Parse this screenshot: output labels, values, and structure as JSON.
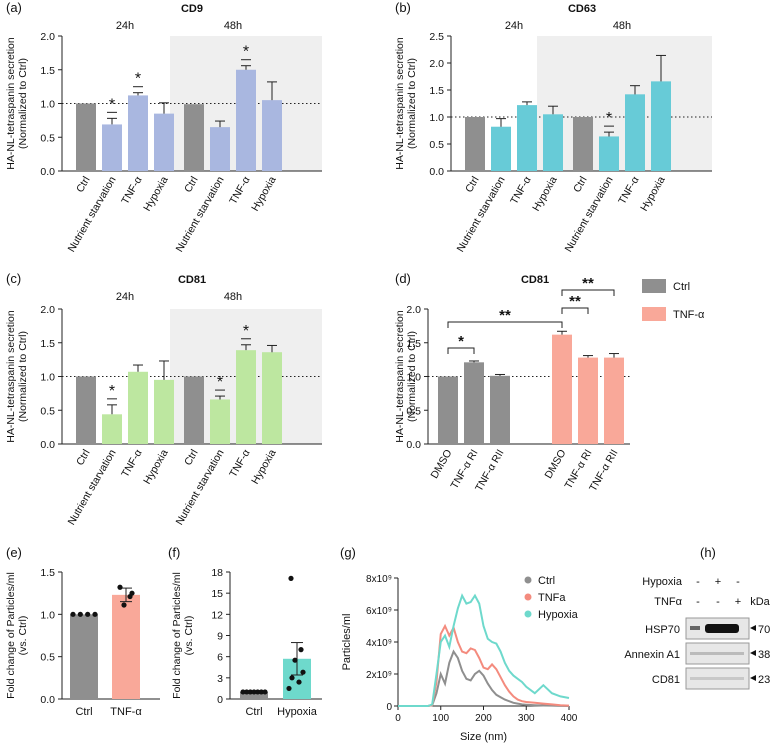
{
  "colors": {
    "ctrl": "#8f8f8f",
    "cd9": "#a9b7e0",
    "cd63": "#67cbd7",
    "cd81": "#bde7a0",
    "tnf": "#f9a899",
    "hypoxia_line": "#6ed9cc",
    "tnf_line": "#f48b7e",
    "ctrl_line": "#8f8f8f",
    "shade": "#efefef"
  },
  "chart_data": [
    {
      "id": "a",
      "type": "bar",
      "panel_label": "(a)",
      "title": "CD9",
      "ylabel": "HA-NL-tetraspanin secretion",
      "ylabel2": "(Normalized to Ctrl)",
      "ylim": [
        0,
        2.0
      ],
      "yticks": [
        "0.0",
        "0.5",
        "1.0",
        "1.5",
        "2.0"
      ],
      "reference_line": 1.0,
      "groups": [
        {
          "label": "24h",
          "shaded": false,
          "bars": [
            {
              "category": "Ctrl",
              "value": 1.0,
              "error": 0,
              "color": "ctrl",
              "sig": ""
            },
            {
              "category": "Nutrient starvation",
              "value": 0.69,
              "error": 0.09,
              "color": "cd9",
              "sig": "*"
            },
            {
              "category": "TNF-α",
              "value": 1.12,
              "error": 0.04,
              "color": "cd9",
              "sig": "*"
            },
            {
              "category": "Hypoxia",
              "value": 0.85,
              "error": 0.16,
              "color": "cd9",
              "sig": ""
            }
          ]
        },
        {
          "label": "48h",
          "shaded": true,
          "bars": [
            {
              "category": "Ctrl",
              "value": 0.99,
              "error": 0,
              "color": "ctrl",
              "sig": ""
            },
            {
              "category": "Nutrient starvation",
              "value": 0.65,
              "error": 0.09,
              "color": "cd9",
              "sig": ""
            },
            {
              "category": "TNF-α",
              "value": 1.5,
              "error": 0.06,
              "color": "cd9",
              "sig": "*"
            },
            {
              "category": "Hypoxia",
              "value": 1.05,
              "error": 0.27,
              "color": "cd9",
              "sig": ""
            }
          ]
        }
      ]
    },
    {
      "id": "b",
      "type": "bar",
      "panel_label": "(b)",
      "title": "CD63",
      "ylabel": "HA-NL-tetraspanin secretion",
      "ylabel2": "(Normalized to Ctrl)",
      "ylim": [
        0,
        2.5
      ],
      "yticks": [
        "0.0",
        "0.5",
        "1.0",
        "1.5",
        "2.0",
        "2.5"
      ],
      "reference_line": 1.0,
      "groups": [
        {
          "label": "24h",
          "shaded": false,
          "bars": [
            {
              "category": "Ctrl",
              "value": 1.0,
              "error": 0,
              "color": "ctrl",
              "sig": ""
            },
            {
              "category": "Nutrient starvation",
              "value": 0.82,
              "error": 0.15,
              "color": "cd63",
              "sig": ""
            },
            {
              "category": "TNF-α",
              "value": 1.22,
              "error": 0.06,
              "color": "cd63",
              "sig": ""
            },
            {
              "category": "Hypoxia",
              "value": 1.05,
              "error": 0.15,
              "color": "cd63",
              "sig": ""
            }
          ]
        },
        {
          "label": "48h",
          "shaded": true,
          "bars": [
            {
              "category": "Ctrl",
              "value": 1.0,
              "error": 0,
              "color": "ctrl",
              "sig": ""
            },
            {
              "category": "Nutrient starvation",
              "value": 0.64,
              "error": 0.08,
              "color": "cd63",
              "sig": "*"
            },
            {
              "category": "TNF-α",
              "value": 1.42,
              "error": 0.16,
              "color": "cd63",
              "sig": ""
            },
            {
              "category": "Hypoxia",
              "value": 1.66,
              "error": 0.48,
              "color": "cd63",
              "sig": ""
            }
          ]
        }
      ]
    },
    {
      "id": "c",
      "type": "bar",
      "panel_label": "(c)",
      "title": "CD81",
      "ylabel": "HA-NL-tetraspanin secretion",
      "ylabel2": "(Normalized to Ctrl)",
      "ylim": [
        0,
        2.0
      ],
      "yticks": [
        "0.0",
        "0.5",
        "1.0",
        "1.5",
        "2.0"
      ],
      "reference_line": 1.0,
      "groups": [
        {
          "label": "24h",
          "shaded": false,
          "bars": [
            {
              "category": "Ctrl",
              "value": 1.0,
              "error": 0,
              "color": "ctrl",
              "sig": ""
            },
            {
              "category": "Nutrient starvation",
              "value": 0.44,
              "error": 0.14,
              "color": "cd81",
              "sig": "*"
            },
            {
              "category": "TNF-α",
              "value": 1.07,
              "error": 0.1,
              "color": "cd81",
              "sig": ""
            },
            {
              "category": "Hypoxia",
              "value": 0.95,
              "error": 0.28,
              "color": "cd81",
              "sig": ""
            }
          ]
        },
        {
          "label": "48h",
          "shaded": true,
          "bars": [
            {
              "category": "Ctrl",
              "value": 1.0,
              "error": 0,
              "color": "ctrl",
              "sig": ""
            },
            {
              "category": "Nutrient starvation",
              "value": 0.66,
              "error": 0.05,
              "color": "cd81",
              "sig": "*"
            },
            {
              "category": "TNF-α",
              "value": 1.39,
              "error": 0.08,
              "color": "cd81",
              "sig": "*"
            },
            {
              "category": "Hypoxia",
              "value": 1.36,
              "error": 0.1,
              "color": "cd81",
              "sig": ""
            }
          ]
        }
      ]
    },
    {
      "id": "d",
      "type": "bar",
      "panel_label": "(d)",
      "title": "CD81",
      "ylabel": "HA-NL-tetraspanin secretion",
      "ylabel2": "(Normalized to Ctrl)",
      "ylim": [
        0,
        2.0
      ],
      "yticks": [
        "0.0",
        "0.5",
        "1.0",
        "1.5",
        "2.0"
      ],
      "reference_line": 1.0,
      "legend": [
        {
          "label": "Ctrl",
          "color": "ctrl"
        },
        {
          "label": "TNF-α",
          "color": "tnf"
        }
      ],
      "groups": [
        {
          "label": "",
          "shaded": false,
          "bars": [
            {
              "category": "DMSO",
              "value": 1.0,
              "error": 0,
              "color": "ctrl",
              "sig": ""
            },
            {
              "category": "TNF-α RI",
              "value": 1.21,
              "error": 0.02,
              "color": "ctrl",
              "sig": ""
            },
            {
              "category": "TNF-α RII",
              "value": 1.01,
              "error": 0.02,
              "color": "ctrl",
              "sig": ""
            }
          ]
        },
        {
          "label": "",
          "shaded": false,
          "bars": [
            {
              "category": "DMSO",
              "value": 1.62,
              "error": 0.05,
              "color": "tnf",
              "sig": ""
            },
            {
              "category": "TNF-α RI",
              "value": 1.28,
              "error": 0.03,
              "color": "tnf",
              "sig": ""
            },
            {
              "category": "TNF-α RII",
              "value": 1.28,
              "error": 0.06,
              "color": "tnf",
              "sig": ""
            }
          ]
        }
      ],
      "brackets": [
        {
          "from": 0,
          "to": 1,
          "label": "*"
        },
        {
          "from": 0,
          "to": 3,
          "label": "**"
        },
        {
          "from": 3,
          "to": 4,
          "label": "**"
        },
        {
          "from": 3,
          "to": 5,
          "label": "**"
        }
      ]
    },
    {
      "id": "e",
      "type": "bar",
      "panel_label": "(e)",
      "ylabel": "Fold change of Particles/ml",
      "ylabel2": "(vs. Ctrl)",
      "ylim": [
        0,
        1.5
      ],
      "yticks": [
        "0.0",
        "0.5",
        "1.0",
        "1.5"
      ],
      "bars": [
        {
          "category": "Ctrl",
          "value": 1.0,
          "error": 0,
          "color": "ctrl",
          "points": [
            1.0,
            1.0,
            1.0,
            1.0
          ]
        },
        {
          "category": "TNF-α",
          "value": 1.23,
          "error": 0.08,
          "color": "tnf",
          "points": [
            1.32,
            1.21,
            1.11,
            1.25
          ]
        }
      ]
    },
    {
      "id": "f",
      "type": "bar",
      "panel_label": "(f)",
      "ylabel": "Fold change of Particles/ml",
      "ylabel2": "(vs. Ctrl)",
      "ylim": [
        0,
        18
      ],
      "yticks": [
        "0",
        "3",
        "6",
        "9",
        "12",
        "15",
        "18"
      ],
      "bars": [
        {
          "category": "Ctrl",
          "value": 1.0,
          "error": 0,
          "color": "ctrl",
          "points": [
            1,
            1,
            1,
            1,
            1,
            1,
            1
          ]
        },
        {
          "category": "Hypoxia",
          "value": 5.7,
          "error": 2.3,
          "color": "hypoxia_line",
          "points": [
            17.1,
            7.0,
            5.5,
            3.8,
            3.0,
            2.4,
            1.5
          ]
        }
      ]
    },
    {
      "id": "g",
      "type": "line",
      "panel_label": "(g)",
      "xlabel": "Size (nm)",
      "ylabel": "Particles/ml",
      "xlim": [
        0,
        400
      ],
      "xticks": [
        "0",
        "100",
        "200",
        "300",
        "400"
      ],
      "ylim": [
        0,
        8
      ],
      "yticks": [
        "0",
        "2x10⁹",
        "4x10⁹",
        "6x10⁹",
        "8x10⁹"
      ],
      "legend": [
        "Ctrl",
        "TNFa",
        "Hypoxia"
      ],
      "series": [
        {
          "name": "Ctrl",
          "color": "ctrl_line",
          "x": [
            0,
            60,
            70,
            80,
            90,
            100,
            110,
            120,
            130,
            140,
            150,
            160,
            170,
            180,
            190,
            200,
            210,
            220,
            230,
            240,
            250,
            260,
            270,
            280,
            290,
            300,
            320,
            340,
            360,
            380,
            400
          ],
          "y": [
            0,
            0,
            0,
            0.05,
            0.8,
            2.0,
            1.4,
            2.7,
            3.4,
            3.0,
            2.2,
            1.7,
            1.6,
            2.0,
            2.2,
            1.9,
            1.4,
            1.0,
            0.7,
            0.55,
            0.4,
            0.3,
            0.2,
            0.15,
            0.1,
            0.08,
            0.05,
            0.03,
            0.02,
            0.01,
            0
          ]
        },
        {
          "name": "TNFa",
          "color": "tnf_line",
          "x": [
            0,
            60,
            70,
            80,
            90,
            100,
            110,
            120,
            130,
            140,
            150,
            160,
            170,
            180,
            190,
            200,
            210,
            220,
            230,
            240,
            250,
            260,
            270,
            280,
            290,
            300,
            320,
            340,
            360,
            380,
            400
          ],
          "y": [
            0,
            0,
            0,
            0.05,
            1.5,
            4.5,
            5.0,
            4.4,
            4.9,
            4.0,
            3.4,
            3.3,
            3.6,
            3.5,
            3.0,
            2.4,
            2.3,
            2.6,
            2.3,
            1.8,
            1.3,
            0.9,
            0.6,
            0.4,
            0.3,
            0.25,
            0.2,
            0.15,
            0.1,
            0.05,
            0.02
          ]
        },
        {
          "name": "Hypoxia",
          "color": "hypoxia_line",
          "x": [
            0,
            60,
            70,
            80,
            90,
            100,
            110,
            120,
            130,
            140,
            150,
            160,
            170,
            180,
            190,
            200,
            210,
            220,
            230,
            240,
            250,
            260,
            270,
            280,
            290,
            300,
            320,
            340,
            360,
            380,
            400
          ],
          "y": [
            0,
            0,
            0,
            0.1,
            2.0,
            4.0,
            4.4,
            3.7,
            5.0,
            6.1,
            6.9,
            6.4,
            6.5,
            6.9,
            6.4,
            5.0,
            4.2,
            4.0,
            3.9,
            3.4,
            2.7,
            2.2,
            1.9,
            1.7,
            1.5,
            1.2,
            0.8,
            1.3,
            0.8,
            0.6,
            0.5
          ]
        }
      ]
    }
  ],
  "blot": {
    "panel_label": "(h)",
    "conditions": [
      {
        "name": "Hypoxia",
        "marks": [
          "-",
          "+",
          "-"
        ]
      },
      {
        "name": "TNFα",
        "marks": [
          "-",
          "-",
          "+"
        ]
      }
    ],
    "kda_label": "kDa",
    "rows": [
      {
        "name": "HSP70",
        "kda": "70"
      },
      {
        "name": "Annexin A1",
        "kda": "38"
      },
      {
        "name": "CD81",
        "kda": "23"
      }
    ]
  }
}
